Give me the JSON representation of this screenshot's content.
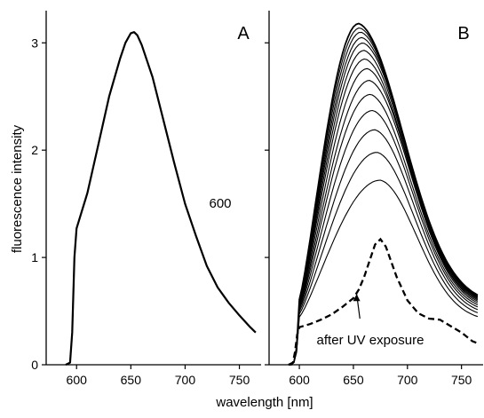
{
  "chart_data": [
    {
      "panel": "A",
      "type": "line",
      "xlim": [
        572,
        770
      ],
      "ylim": [
        0,
        3.3
      ],
      "xticks": [
        600,
        650,
        700,
        750
      ],
      "yticks": [
        0,
        1,
        2,
        3
      ],
      "ylabel": "fluorescence intensity",
      "annotation": "600",
      "series": [
        {
          "style": "solid",
          "x": [
            590,
            594,
            596,
            598,
            600,
            610,
            620,
            630,
            640,
            645,
            650,
            653,
            656,
            660,
            670,
            680,
            690,
            700,
            710,
            720,
            730,
            740,
            750,
            760,
            765
          ],
          "y": [
            0,
            0.02,
            0.3,
            1.0,
            1.27,
            1.6,
            2.05,
            2.5,
            2.85,
            3.0,
            3.09,
            3.1,
            3.07,
            2.98,
            2.68,
            2.28,
            1.88,
            1.5,
            1.2,
            0.92,
            0.72,
            0.58,
            0.46,
            0.35,
            0.3
          ]
        }
      ]
    },
    {
      "panel": "B",
      "type": "line",
      "xlim": [
        572,
        770
      ],
      "ylim": [
        0,
        3.3
      ],
      "xticks": [
        600,
        650,
        700,
        750
      ],
      "yticks": [
        0,
        1,
        2,
        3
      ],
      "annotation": "after UV exposure",
      "peaks": [
        3.18,
        3.14,
        3.1,
        3.05,
        3.0,
        2.93,
        2.85,
        2.76,
        2.65,
        2.52,
        2.37,
        2.19,
        1.98,
        1.72
      ],
      "peak_x": [
        655,
        656,
        657,
        658,
        659,
        660,
        661,
        663,
        665,
        666,
        668,
        670,
        672,
        675
      ],
      "series": [
        {
          "style": "dashed",
          "x": [
            590,
            594,
            596,
            598,
            600,
            610,
            620,
            630,
            640,
            650,
            655,
            660,
            665,
            670,
            675,
            680,
            690,
            700,
            710,
            720,
            730,
            740,
            750,
            760,
            765
          ],
          "y": [
            0,
            0.02,
            0.12,
            0.28,
            0.35,
            0.38,
            0.42,
            0.47,
            0.54,
            0.62,
            0.7,
            0.82,
            0.97,
            1.12,
            1.17,
            1.1,
            0.82,
            0.6,
            0.48,
            0.43,
            0.42,
            0.36,
            0.3,
            0.22,
            0.2
          ]
        }
      ]
    }
  ],
  "xlabel": "wavelength [nm]"
}
